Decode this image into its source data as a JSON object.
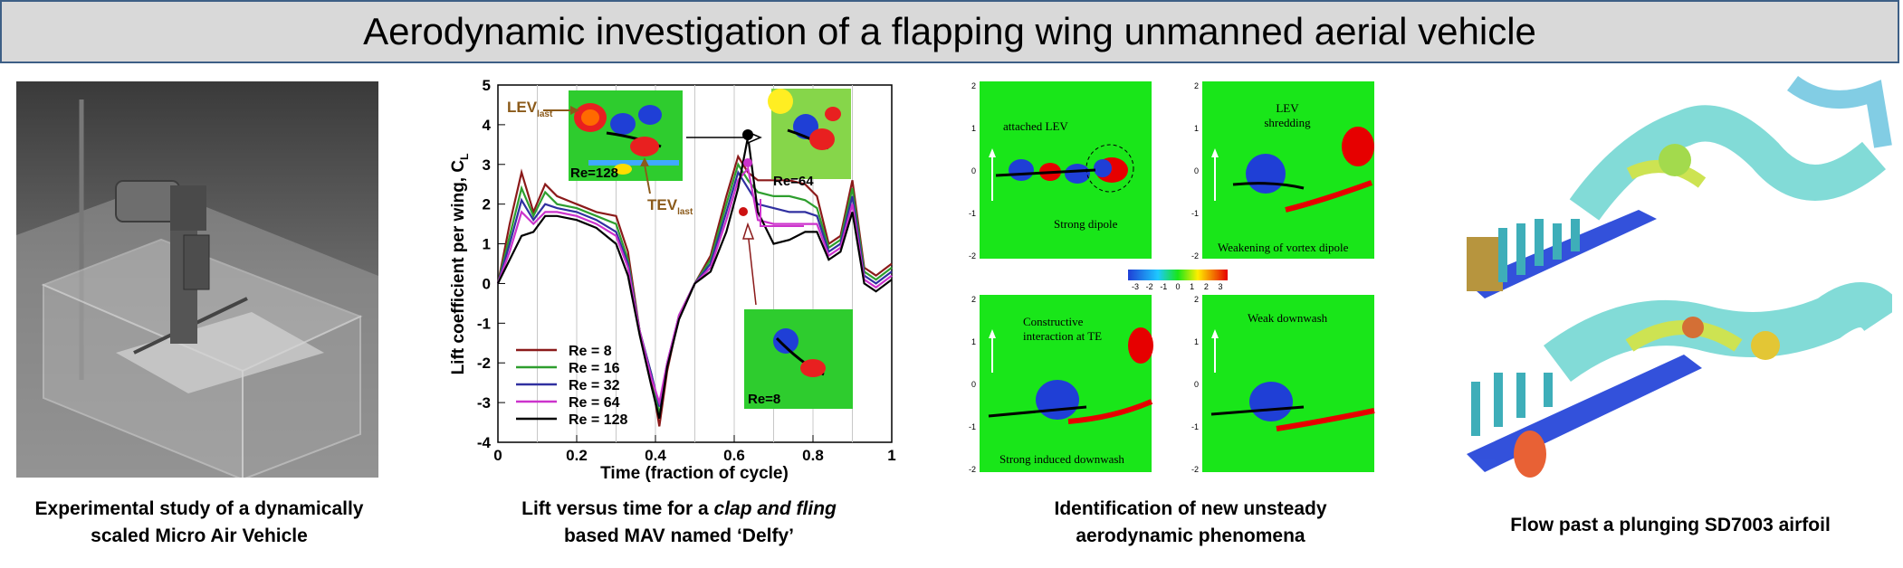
{
  "title": "Aerodynamic investigation of a flapping wing unmanned aerial vehicle",
  "panels": [
    {
      "caption_line1": "Experimental study of a dynamically",
      "caption_line2": "scaled Micro Air Vehicle"
    },
    {
      "caption_line1_prefix": "Lift versus time for a ",
      "caption_line1_italic": "clap and fling",
      "caption_line2": "based MAV named ‘Delfy’"
    },
    {
      "caption_line1": "Identification of new unsteady",
      "caption_line2": "aerodynamic phenomena"
    },
    {
      "caption_line1": "Flow past a plunging SD7003 airfoil"
    }
  ],
  "chart_data": {
    "type": "line",
    "xlabel": "Time (fraction of cycle)",
    "ylabel": "Lift coefficient per wing, C",
    "ylabel_sub": "L",
    "xlim": [
      0,
      1
    ],
    "ylim": [
      -4,
      5
    ],
    "xticks": [
      "0",
      "0.2",
      "0.4",
      "0.6",
      "0.8",
      "1"
    ],
    "yticks": [
      "-4",
      "-3",
      "-2",
      "-1",
      "0",
      "1",
      "2",
      "3",
      "4",
      "5"
    ],
    "grid": "vertical",
    "legend_position": "bottom-left",
    "x": [
      0,
      0.03,
      0.06,
      0.09,
      0.12,
      0.15,
      0.2,
      0.25,
      0.3,
      0.33,
      0.36,
      0.39,
      0.41,
      0.43,
      0.46,
      0.5,
      0.54,
      0.58,
      0.61,
      0.635,
      0.66,
      0.7,
      0.74,
      0.78,
      0.81,
      0.84,
      0.87,
      0.9,
      0.93,
      0.96,
      1.0
    ],
    "series": [
      {
        "name": "Re = 8",
        "color": "#8b1a1a",
        "values": [
          0,
          1.5,
          2.8,
          1.8,
          2.5,
          2.2,
          2.0,
          1.8,
          1.7,
          0.8,
          -1.2,
          -2.4,
          -3.6,
          -2.2,
          -0.8,
          0,
          0.7,
          2.2,
          3.2,
          2.8,
          2.6,
          2.6,
          2.6,
          2.5,
          2.2,
          1.0,
          1.2,
          2.6,
          0.4,
          0.2,
          0.5
        ]
      },
      {
        "name": "Re = 16",
        "color": "#2e9e2e",
        "values": [
          0,
          1.2,
          2.4,
          1.7,
          2.3,
          2.0,
          1.9,
          1.7,
          1.5,
          0.6,
          -1.2,
          -2.3,
          -3.3,
          -2.1,
          -0.8,
          0,
          0.6,
          2.0,
          3.0,
          2.6,
          2.3,
          2.2,
          2.2,
          2.1,
          1.9,
          0.9,
          1.1,
          2.4,
          0.3,
          0.1,
          0.4
        ]
      },
      {
        "name": "Re = 32",
        "color": "#3030a0",
        "values": [
          0,
          1.0,
          2.1,
          1.6,
          2.0,
          1.9,
          1.8,
          1.6,
          1.3,
          0.5,
          -1.2,
          -2.3,
          -3.1,
          -2.0,
          -0.8,
          0,
          0.5,
          1.8,
          2.8,
          2.4,
          2.0,
          1.9,
          1.8,
          1.8,
          1.7,
          0.8,
          1.0,
          2.2,
          0.2,
          0.0,
          0.3
        ]
      },
      {
        "name": "Re = 64",
        "color": "#cc33cc",
        "values": [
          0,
          0.8,
          1.8,
          1.5,
          1.8,
          1.8,
          1.7,
          1.5,
          1.2,
          0.4,
          -1.2,
          -2.4,
          -3.0,
          -2.0,
          -0.8,
          0,
          0.4,
          1.6,
          2.6,
          2.9,
          1.6,
          1.5,
          1.5,
          1.5,
          1.5,
          0.7,
          0.9,
          2.0,
          0.1,
          -0.1,
          0.2
        ]
      },
      {
        "name": "Re = 128",
        "color": "#000000",
        "values": [
          0,
          0.6,
          1.2,
          1.3,
          1.7,
          1.7,
          1.6,
          1.4,
          1.0,
          0.2,
          -1.3,
          -2.6,
          -3.4,
          -2.1,
          -0.9,
          0,
          0.3,
          1.3,
          2.4,
          3.7,
          1.8,
          1.0,
          1.1,
          1.3,
          1.3,
          0.6,
          0.8,
          1.8,
          0.0,
          -0.2,
          0.1
        ]
      }
    ],
    "annotations": {
      "lev_main": "LEV",
      "lev_sub": "last",
      "tev_main": "TEV",
      "tev_sub": "last",
      "inset1": "Re=128",
      "inset2": "Re=64",
      "inset3": "Re=8"
    }
  },
  "vortex_panel": {
    "tl_label1": "attached LEV",
    "tl_label2": "Strong dipole",
    "tr_label1": "LEV",
    "tr_label2": "shredding",
    "tr_label3": "Weakening of vortex dipole",
    "bl_label1": "Constructive",
    "bl_label2": "interaction at TE",
    "bl_label3": "Strong induced downwash",
    "br_label1": "Weak downwash",
    "axis_ticks": [
      "2",
      "1",
      "0",
      "-1",
      "-2"
    ],
    "colorbar_ticks": [
      "-3",
      "-2",
      "-1",
      "0",
      "1",
      "2",
      "3"
    ],
    "colors": {
      "field": "#19e619",
      "positive": "#e60000",
      "negative": "#1f3fd6"
    }
  }
}
